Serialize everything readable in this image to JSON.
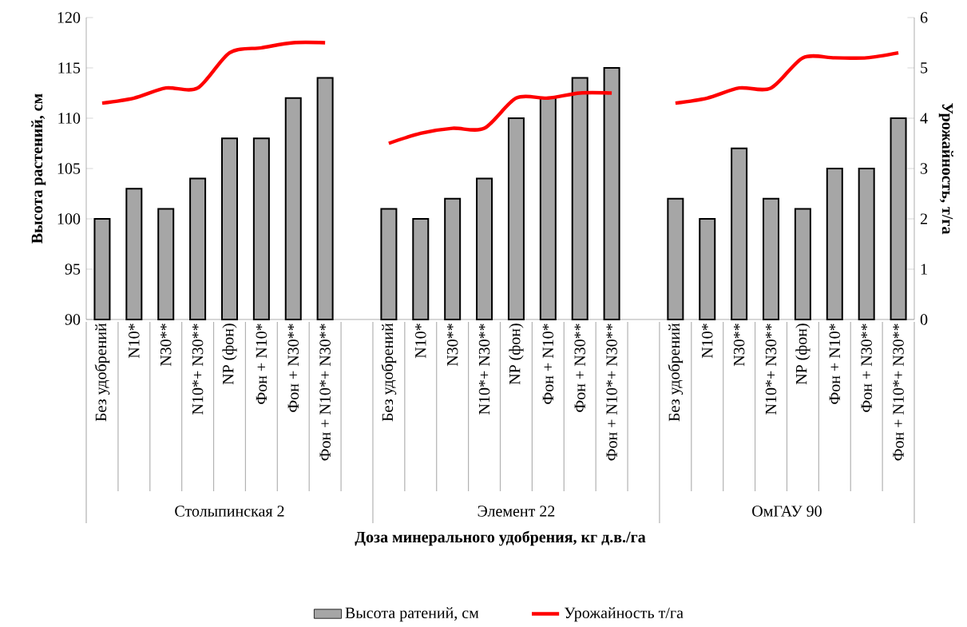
{
  "chart_data": {
    "type": "bar",
    "categories": [
      "Без удобрений",
      "N10*",
      "N30**",
      "N10*+ N30**",
      "NP (фон)",
      "Фон + N10*",
      "Фон + N30**",
      "Фон + N10*+ N30**",
      null,
      "Без удобрений",
      "N10*",
      "N30**",
      "N10*+ N30**",
      "NP (фон)",
      "Фон + N10*",
      "Фон + N30**",
      "Фон + N10*+ N30**",
      null,
      "Без удобрений",
      "N10*",
      "N30**",
      "N10*+ N30**",
      "NP (фон)",
      "Фон + N10*",
      "Фон + N30**",
      "Фон + N10*+ N30**"
    ],
    "series": [
      {
        "name": "Высота ратений, см",
        "color": "#a6a6a6",
        "values": [
          100,
          103,
          101,
          104,
          108,
          108,
          112,
          114,
          null,
          101,
          100,
          102,
          104,
          110,
          112,
          114,
          115,
          null,
          102,
          100,
          107,
          102,
          101,
          105,
          105,
          110
        ]
      },
      {
        "name": "Урожайность т/га",
        "type": "line",
        "axis": "y2",
        "color": "#ff0000",
        "values": [
          4.3,
          4.4,
          4.6,
          4.6,
          5.3,
          5.4,
          5.5,
          5.5,
          null,
          3.5,
          3.7,
          3.8,
          3.8,
          4.4,
          4.4,
          4.5,
          4.5,
          null,
          4.3,
          4.4,
          4.6,
          4.6,
          5.2,
          5.2,
          5.2,
          5.3
        ]
      }
    ],
    "ylim": [
      90,
      120
    ],
    "yticks": [
      90,
      95,
      100,
      105,
      110,
      115,
      120
    ],
    "y2lim": [
      0,
      6
    ],
    "y2ticks": [
      0,
      1,
      2,
      3,
      4,
      5,
      6
    ],
    "ylabel": "Высота растений, см",
    "y2label": "Урожайность, т/га",
    "xlabel": "Доза минерального удобрения, кг д.в./га",
    "annotations": [
      "Столыпинская 2",
      "Элемент 22",
      "ОмГАУ 90"
    ],
    "legend": "bottom"
  }
}
